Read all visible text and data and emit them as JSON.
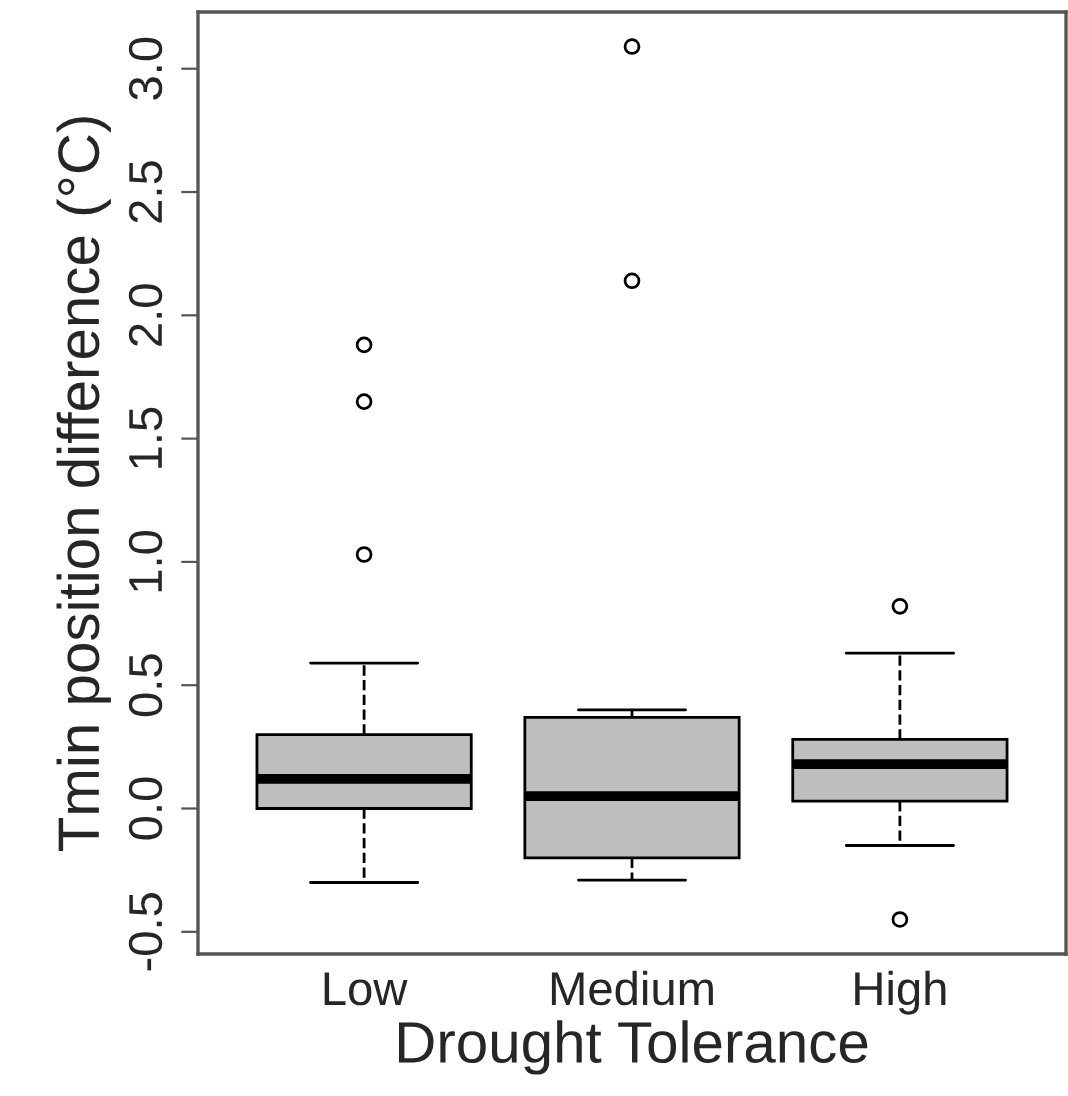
{
  "chart_data": {
    "type": "box",
    "xlabel": "Drought Tolerance",
    "ylabel": "Tmin position difference (°C)",
    "categories": [
      "Low",
      "Medium",
      "High"
    ],
    "series": [
      {
        "color": "#bebebe",
        "boxes": [
          {
            "low": -0.3,
            "q1": 0.0,
            "median": 0.12,
            "q3": 0.3,
            "high": 0.59,
            "outliers": [
              1.03,
              1.65,
              1.88
            ]
          },
          {
            "low": -0.29,
            "q1": -0.2,
            "median": 0.05,
            "q3": 0.37,
            "high": 0.4,
            "outliers": [
              2.14,
              3.09
            ]
          },
          {
            "low": -0.15,
            "q1": 0.03,
            "median": 0.18,
            "q3": 0.28,
            "high": 0.63,
            "outliers": [
              -0.45,
              0.82
            ]
          }
        ]
      }
    ],
    "ylim": [
      -0.59,
      3.23
    ],
    "yticks": [
      {
        "value": -0.5,
        "label": "-0.5"
      },
      {
        "value": 0,
        "label": "0.0"
      },
      0.5,
      {
        "value": 1,
        "label": "1.0"
      },
      1.5,
      {
        "value": 2,
        "label": "2.0"
      },
      2.5,
      {
        "value": 3,
        "label": "3.0"
      }
    ],
    "grid": false,
    "legend": false
  }
}
